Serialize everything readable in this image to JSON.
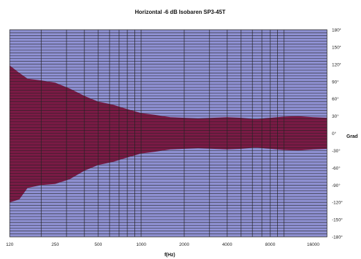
{
  "chart_data": {
    "type": "area",
    "title": "Horizontal -6 dB Isobaren SP3-45T",
    "xlabel": "f(Hz)",
    "ylabel": "Grad",
    "x_scale": "log",
    "xlim": [
      120,
      20000
    ],
    "ylim": [
      -180,
      180
    ],
    "x_ticks": [
      {
        "value": 120,
        "label": "120"
      },
      {
        "value": 250,
        "label": "250"
      },
      {
        "value": 500,
        "label": "500"
      },
      {
        "value": 1000,
        "label": "1000"
      },
      {
        "value": 2000,
        "label": "2000"
      },
      {
        "value": 4000,
        "label": "4000"
      },
      {
        "value": 8000,
        "label": "8000"
      },
      {
        "value": 16000,
        "label": "16000"
      }
    ],
    "y_ticks": [
      {
        "value": 180,
        "label": "180°"
      },
      {
        "value": 150,
        "label": "150°"
      },
      {
        "value": 120,
        "label": "120°"
      },
      {
        "value": 90,
        "label": "90°"
      },
      {
        "value": 60,
        "label": "60°"
      },
      {
        "value": 30,
        "label": "30°"
      },
      {
        "value": 0,
        "label": "0°"
      },
      {
        "value": -30,
        "label": "-30°"
      },
      {
        "value": -60,
        "label": "-60°"
      },
      {
        "value": -90,
        "label": "-90°"
      },
      {
        "value": -120,
        "label": "-120°"
      },
      {
        "value": -150,
        "label": "-150°"
      },
      {
        "value": -180,
        "label": "-180°"
      }
    ],
    "grid": true,
    "colors": {
      "plot_background": "#8f91d3",
      "band_fill": "#7a1a45",
      "grid_line": "#222222"
    },
    "series": [
      {
        "x": [
          120,
          140,
          160,
          200,
          250,
          315,
          400,
          500,
          630,
          800,
          1000,
          1250,
          1600,
          2000,
          2500,
          3150,
          4000,
          5000,
          6300,
          8000,
          10000,
          12500,
          16000,
          20000
        ],
        "upper": [
          118,
          105,
          95,
          92,
          88,
          78,
          65,
          55,
          50,
          42,
          35,
          32,
          28,
          27,
          26,
          27,
          28,
          27,
          25,
          27,
          29,
          30,
          28,
          27
        ],
        "lower": [
          -120,
          -115,
          -95,
          -90,
          -88,
          -80,
          -65,
          -55,
          -50,
          -42,
          -35,
          -32,
          -28,
          -27,
          -26,
          -27,
          -28,
          -27,
          -25,
          -27,
          -29,
          -30,
          -28,
          -27
        ]
      }
    ]
  }
}
